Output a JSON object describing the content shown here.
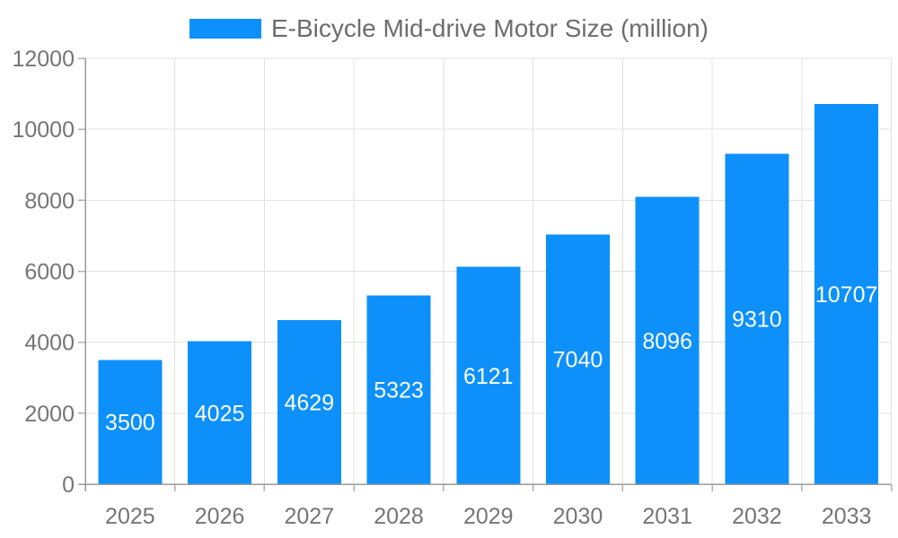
{
  "chart_data": {
    "type": "bar",
    "title": "E-Bicycle Mid-drive Motor Size (million)",
    "series_name": "E-Bicycle Mid-drive Motor Size (million)",
    "categories": [
      "2025",
      "2026",
      "2027",
      "2028",
      "2029",
      "2030",
      "2031",
      "2032",
      "2033"
    ],
    "values": [
      3500,
      4025,
      4629,
      5323,
      6121,
      7040,
      8096,
      9310,
      10707
    ],
    "yticks": [
      0,
      2000,
      4000,
      6000,
      8000,
      10000,
      12000
    ],
    "ylim": [
      0,
      12000
    ],
    "xlabel": "",
    "ylabel": "",
    "grid": true,
    "legend_position": "top-center",
    "value_labels": "inside-center",
    "colors": {
      "bar": "#0d90fa",
      "value_label": "#ffffff",
      "axis_text": "#757575",
      "legend_text": "#6d6d6d",
      "grid": "#e0e0e0",
      "axis_line": "#9a9a9a",
      "tick_mark": "#b0b0b0",
      "background": "#ffffff"
    }
  }
}
